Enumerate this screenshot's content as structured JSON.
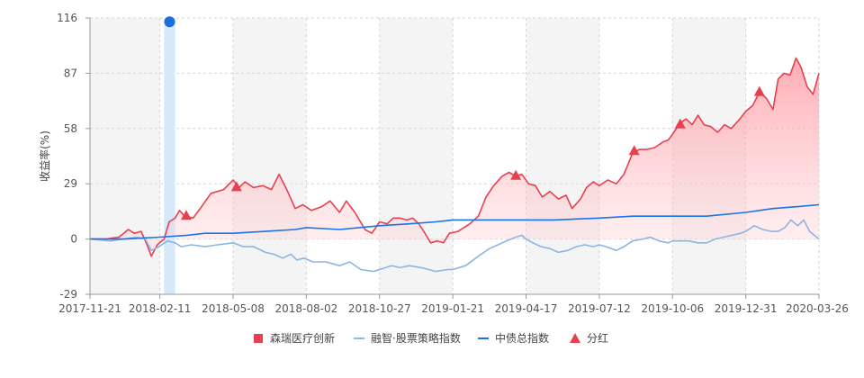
{
  "chart_data": {
    "type": "line",
    "title": "",
    "xlabel": "",
    "ylabel": "收益率(%)",
    "ylim": [
      -29,
      116
    ],
    "yticks": [
      -29,
      0,
      29,
      58,
      87,
      116
    ],
    "xticks": [
      "2017-11-21",
      "2018-02-11",
      "2018-05-08",
      "2018-08-02",
      "2018-10-27",
      "2019-01-21",
      "2019-04-17",
      "2019-07-12",
      "2019-10-06",
      "2019-12-31",
      "2020-03-26"
    ],
    "x_range": [
      "2017-11-21",
      "2020-03-26"
    ],
    "grid": true,
    "legend_position": "bottom",
    "highlight_band": {
      "start": "2018-02-16",
      "end": "2018-03-01",
      "marker_value": 114
    },
    "series": [
      {
        "name": "森瑞医疗创新",
        "color": "#e8404f",
        "area": true,
        "points": [
          [
            "2017-11-21",
            0
          ],
          [
            "2017-12-10",
            0
          ],
          [
            "2017-12-25",
            1
          ],
          [
            "2018-01-05",
            5
          ],
          [
            "2018-01-12",
            3
          ],
          [
            "2018-01-20",
            4
          ],
          [
            "2018-01-27",
            -3
          ],
          [
            "2018-02-01",
            -9
          ],
          [
            "2018-02-08",
            -3
          ],
          [
            "2018-02-16",
            0
          ],
          [
            "2018-02-22",
            9
          ],
          [
            "2018-03-01",
            11
          ],
          [
            "2018-03-06",
            15
          ],
          [
            "2018-03-12",
            12
          ],
          [
            "2018-03-22",
            11
          ],
          [
            "2018-04-01",
            17
          ],
          [
            "2018-04-12",
            24
          ],
          [
            "2018-04-27",
            26
          ],
          [
            "2018-05-08",
            31
          ],
          [
            "2018-05-15",
            27
          ],
          [
            "2018-05-22",
            30
          ],
          [
            "2018-06-01",
            27
          ],
          [
            "2018-06-12",
            28
          ],
          [
            "2018-06-22",
            26
          ],
          [
            "2018-07-01",
            34
          ],
          [
            "2018-07-10",
            26
          ],
          [
            "2018-07-20",
            16
          ],
          [
            "2018-07-29",
            18
          ],
          [
            "2018-08-08",
            15
          ],
          [
            "2018-08-20",
            17
          ],
          [
            "2018-08-30",
            20
          ],
          [
            "2018-09-10",
            14
          ],
          [
            "2018-09-18",
            20
          ],
          [
            "2018-09-28",
            14
          ],
          [
            "2018-10-10",
            5
          ],
          [
            "2018-10-18",
            3
          ],
          [
            "2018-10-27",
            9
          ],
          [
            "2018-11-05",
            8
          ],
          [
            "2018-11-12",
            11
          ],
          [
            "2018-11-20",
            11
          ],
          [
            "2018-11-28",
            10
          ],
          [
            "2018-12-05",
            11
          ],
          [
            "2018-12-12",
            8
          ],
          [
            "2018-12-18",
            4
          ],
          [
            "2018-12-26",
            -2
          ],
          [
            "2019-01-03",
            -1
          ],
          [
            "2019-01-10",
            -2
          ],
          [
            "2019-01-17",
            3
          ],
          [
            "2019-01-27",
            4
          ],
          [
            "2019-02-10",
            8
          ],
          [
            "2019-02-20",
            12
          ],
          [
            "2019-03-01",
            22
          ],
          [
            "2019-03-10",
            28
          ],
          [
            "2019-03-20",
            33
          ],
          [
            "2019-03-28",
            35
          ],
          [
            "2019-04-05",
            33
          ],
          [
            "2019-04-12",
            34
          ],
          [
            "2019-04-20",
            29
          ],
          [
            "2019-04-28",
            28
          ],
          [
            "2019-05-06",
            22
          ],
          [
            "2019-05-15",
            25
          ],
          [
            "2019-05-25",
            21
          ],
          [
            "2019-06-03",
            23
          ],
          [
            "2019-06-10",
            16
          ],
          [
            "2019-06-20",
            21
          ],
          [
            "2019-06-27",
            27
          ],
          [
            "2019-07-05",
            30
          ],
          [
            "2019-07-12",
            28
          ],
          [
            "2019-07-22",
            31
          ],
          [
            "2019-08-01",
            29
          ],
          [
            "2019-08-10",
            34
          ],
          [
            "2019-08-20",
            45
          ],
          [
            "2019-08-28",
            47
          ],
          [
            "2019-09-05",
            47
          ],
          [
            "2019-09-15",
            48
          ],
          [
            "2019-09-25",
            51
          ],
          [
            "2019-10-01",
            52
          ],
          [
            "2019-10-06",
            55
          ],
          [
            "2019-10-15",
            61
          ],
          [
            "2019-10-22",
            63
          ],
          [
            "2019-10-29",
            60
          ],
          [
            "2019-11-05",
            65
          ],
          [
            "2019-11-12",
            60
          ],
          [
            "2019-11-20",
            59
          ],
          [
            "2019-11-28",
            56
          ],
          [
            "2019-12-06",
            60
          ],
          [
            "2019-12-14",
            58
          ],
          [
            "2019-12-24",
            63
          ],
          [
            "2019-12-31",
            67
          ],
          [
            "2020-01-08",
            70
          ],
          [
            "2020-01-16",
            77
          ],
          [
            "2020-01-24",
            74
          ],
          [
            "2020-02-01",
            68
          ],
          [
            "2020-02-07",
            84
          ],
          [
            "2020-02-14",
            87
          ],
          [
            "2020-02-21",
            86
          ],
          [
            "2020-02-28",
            95
          ],
          [
            "2020-03-05",
            90
          ],
          [
            "2020-03-12",
            80
          ],
          [
            "2020-03-19",
            76
          ],
          [
            "2020-03-26",
            87
          ]
        ]
      },
      {
        "name": "融智·股票策略指数",
        "color": "#8db4e2",
        "area": false,
        "points": [
          [
            "2017-11-21",
            0
          ],
          [
            "2017-12-15",
            -1
          ],
          [
            "2017-12-30",
            0
          ],
          [
            "2018-01-15",
            1
          ],
          [
            "2018-01-25",
            0
          ],
          [
            "2018-02-01",
            -6
          ],
          [
            "2018-02-10",
            -4
          ],
          [
            "2018-02-20",
            -1
          ],
          [
            "2018-03-01",
            -2
          ],
          [
            "2018-03-08",
            -4
          ],
          [
            "2018-03-20",
            -3
          ],
          [
            "2018-04-05",
            -4
          ],
          [
            "2018-04-20",
            -3
          ],
          [
            "2018-05-08",
            -2
          ],
          [
            "2018-05-20",
            -4
          ],
          [
            "2018-06-01",
            -4
          ],
          [
            "2018-06-15",
            -7
          ],
          [
            "2018-06-25",
            -8
          ],
          [
            "2018-07-05",
            -10
          ],
          [
            "2018-07-15",
            -8
          ],
          [
            "2018-07-22",
            -11
          ],
          [
            "2018-07-30",
            -10
          ],
          [
            "2018-08-10",
            -12
          ],
          [
            "2018-08-25",
            -12
          ],
          [
            "2018-09-10",
            -14
          ],
          [
            "2018-09-22",
            -12
          ],
          [
            "2018-10-05",
            -16
          ],
          [
            "2018-10-20",
            -17
          ],
          [
            "2018-10-27",
            -16
          ],
          [
            "2018-11-10",
            -14
          ],
          [
            "2018-11-20",
            -15
          ],
          [
            "2018-12-01",
            -14
          ],
          [
            "2018-12-15",
            -15
          ],
          [
            "2019-01-01",
            -17
          ],
          [
            "2019-01-15",
            -16
          ],
          [
            "2019-01-21",
            -16
          ],
          [
            "2019-02-05",
            -14
          ],
          [
            "2019-02-20",
            -9
          ],
          [
            "2019-03-05",
            -5
          ],
          [
            "2019-03-15",
            -3
          ],
          [
            "2019-03-25",
            -1
          ],
          [
            "2019-04-05",
            1
          ],
          [
            "2019-04-12",
            2
          ],
          [
            "2019-04-17",
            0
          ],
          [
            "2019-04-25",
            -2
          ],
          [
            "2019-05-05",
            -4
          ],
          [
            "2019-05-15",
            -5
          ],
          [
            "2019-05-25",
            -7
          ],
          [
            "2019-06-05",
            -6
          ],
          [
            "2019-06-15",
            -4
          ],
          [
            "2019-06-25",
            -3
          ],
          [
            "2019-07-05",
            -4
          ],
          [
            "2019-07-12",
            -3
          ],
          [
            "2019-07-20",
            -4
          ],
          [
            "2019-08-01",
            -6
          ],
          [
            "2019-08-10",
            -4
          ],
          [
            "2019-08-20",
            -1
          ],
          [
            "2019-09-01",
            0
          ],
          [
            "2019-09-10",
            1
          ],
          [
            "2019-09-20",
            -1
          ],
          [
            "2019-10-01",
            -2
          ],
          [
            "2019-10-06",
            -1
          ],
          [
            "2019-10-15",
            -1
          ],
          [
            "2019-10-25",
            -1
          ],
          [
            "2019-11-05",
            -2
          ],
          [
            "2019-11-15",
            -2
          ],
          [
            "2019-11-25",
            0
          ],
          [
            "2019-12-05",
            1
          ],
          [
            "2019-12-15",
            2
          ],
          [
            "2019-12-25",
            3
          ],
          [
            "2019-12-31",
            4
          ],
          [
            "2020-01-10",
            7
          ],
          [
            "2020-01-20",
            5
          ],
          [
            "2020-01-30",
            4
          ],
          [
            "2020-02-07",
            4
          ],
          [
            "2020-02-15",
            6
          ],
          [
            "2020-02-22",
            10
          ],
          [
            "2020-03-01",
            7
          ],
          [
            "2020-03-08",
            10
          ],
          [
            "2020-03-15",
            4
          ],
          [
            "2020-03-26",
            0
          ]
        ]
      },
      {
        "name": "中债总指数",
        "color": "#1a73e8",
        "area": false,
        "points": [
          [
            "2017-11-21",
            0
          ],
          [
            "2018-01-01",
            0
          ],
          [
            "2018-02-11",
            1
          ],
          [
            "2018-03-15",
            2
          ],
          [
            "2018-04-05",
            3
          ],
          [
            "2018-05-08",
            3
          ],
          [
            "2018-06-15",
            4
          ],
          [
            "2018-07-20",
            5
          ],
          [
            "2018-08-02",
            6
          ],
          [
            "2018-09-10",
            5
          ],
          [
            "2018-10-27",
            7
          ],
          [
            "2018-12-01",
            8
          ],
          [
            "2019-01-01",
            9
          ],
          [
            "2019-01-21",
            10
          ],
          [
            "2019-03-01",
            10
          ],
          [
            "2019-04-17",
            10
          ],
          [
            "2019-05-20",
            10
          ],
          [
            "2019-07-12",
            11
          ],
          [
            "2019-08-20",
            12
          ],
          [
            "2019-09-20",
            12
          ],
          [
            "2019-10-06",
            12
          ],
          [
            "2019-11-15",
            12
          ],
          [
            "2019-12-31",
            14
          ],
          [
            "2020-02-01",
            16
          ],
          [
            "2020-03-01",
            17
          ],
          [
            "2020-03-26",
            18
          ]
        ]
      }
    ],
    "dividends": {
      "name": "分红",
      "color": "#e8404f",
      "points": [
        [
          "2018-03-14",
          12
        ],
        [
          "2018-05-12",
          27
        ],
        [
          "2019-04-05",
          33
        ],
        [
          "2019-08-22",
          46
        ],
        [
          "2019-10-15",
          60
        ],
        [
          "2020-01-16",
          77
        ]
      ]
    }
  },
  "legend": [
    {
      "label": "森瑞医疗创新",
      "symbol": "square",
      "color": "#e8404f"
    },
    {
      "label": "融智·股票策略指数",
      "symbol": "line",
      "color": "#8db4e2"
    },
    {
      "label": "中债总指数",
      "symbol": "line",
      "color": "#1a73e8"
    },
    {
      "label": "分红",
      "symbol": "triangle",
      "color": "#e8404f"
    }
  ]
}
